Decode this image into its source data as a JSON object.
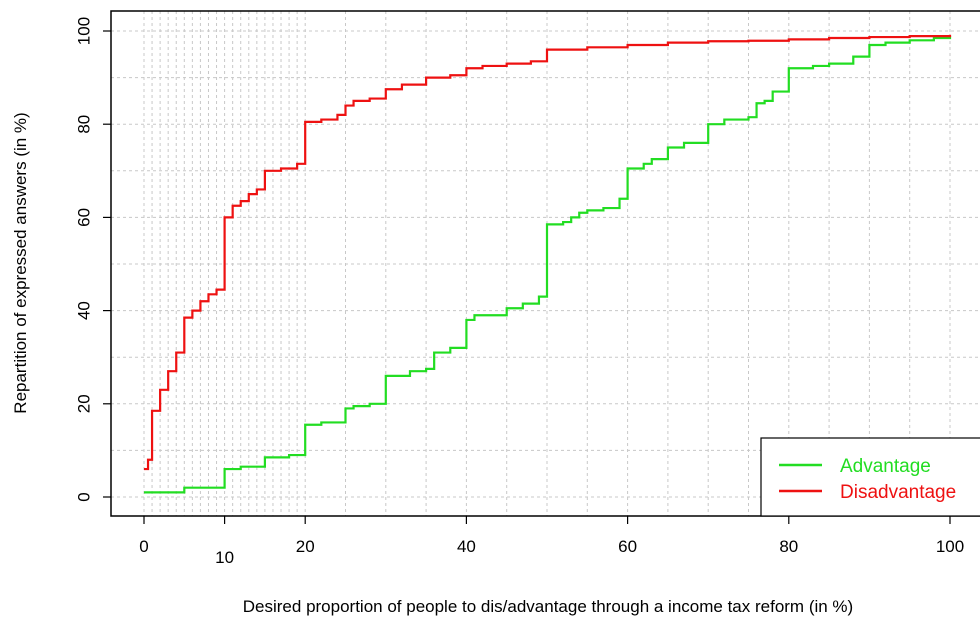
{
  "chart_data": {
    "type": "line",
    "title": "",
    "xlabel": "Desired proportion of people to dis/advantage through a income tax reform (in %)",
    "ylabel": "Repartition of expressed answers (in %)",
    "xlim": [
      0,
      100
    ],
    "ylim": [
      0,
      100
    ],
    "x_ticks": [
      {
        "value": 0,
        "label": "0"
      },
      {
        "value": 10,
        "label": "10"
      },
      {
        "value": 20,
        "label": "20"
      },
      {
        "value": 40,
        "label": "40"
      },
      {
        "value": 60,
        "label": "60"
      },
      {
        "value": 80,
        "label": "80"
      },
      {
        "value": 100,
        "label": "100"
      }
    ],
    "y_ticks": [
      {
        "value": 0,
        "label": "0"
      },
      {
        "value": 20,
        "label": "20"
      },
      {
        "value": 40,
        "label": "40"
      },
      {
        "value": 60,
        "label": "60"
      },
      {
        "value": 80,
        "label": "80"
      },
      {
        "value": 100,
        "label": "100"
      }
    ],
    "x_gridlines": [
      0,
      1,
      2,
      3,
      4,
      5,
      6,
      7,
      8,
      9,
      10,
      11,
      12,
      13,
      14,
      15,
      16,
      17,
      18,
      19,
      20,
      25,
      30,
      35,
      40,
      45,
      50,
      55,
      60,
      65,
      70,
      75,
      80,
      85,
      90,
      95,
      100
    ],
    "y_gridlines": [
      0,
      10,
      20,
      30,
      40,
      50,
      60,
      70,
      80,
      90,
      100
    ],
    "grid": true,
    "legend_position": "bottom-right",
    "step": true,
    "series": [
      {
        "name": "Advantage",
        "color": "#22dd22",
        "x": [
          0,
          5,
          10,
          12,
          15,
          18,
          20,
          22,
          25,
          26,
          28,
          30,
          33,
          35,
          36,
          38,
          40,
          41,
          43,
          45,
          47,
          49,
          50,
          52,
          53,
          54,
          55,
          57,
          59,
          60,
          62,
          63,
          65,
          67,
          70,
          72,
          75,
          76,
          77,
          78,
          80,
          83,
          85,
          88,
          90,
          92,
          95,
          98,
          100
        ],
        "y": [
          1,
          2,
          6,
          6.5,
          8.5,
          9,
          15.5,
          16,
          19,
          19.5,
          20,
          26,
          27,
          27.5,
          31,
          32,
          38,
          39,
          39,
          40.5,
          41.5,
          43,
          58.5,
          59,
          60,
          61,
          61.5,
          62,
          64,
          70.5,
          71.5,
          72.5,
          75,
          76,
          80,
          81,
          81.5,
          84.5,
          85,
          87,
          92,
          92.5,
          93,
          94.5,
          97,
          97.5,
          98,
          98.5,
          99
        ]
      },
      {
        "name": "Disadvantage",
        "color": "#ee1111",
        "x": [
          0,
          0.5,
          1,
          2,
          3,
          4,
          5,
          6,
          7,
          8,
          9,
          10,
          11,
          12,
          13,
          14,
          15,
          17,
          19,
          20,
          22,
          24,
          25,
          26,
          28,
          30,
          32,
          35,
          38,
          40,
          42,
          45,
          48,
          50,
          55,
          60,
          65,
          70,
          75,
          80,
          85,
          90,
          95,
          100
        ],
        "y": [
          6,
          8,
          18.5,
          23,
          27,
          31,
          38.5,
          40,
          42,
          43.5,
          44.5,
          60,
          62.5,
          63.5,
          65,
          66,
          70,
          70.5,
          71.5,
          80.5,
          81,
          82,
          84,
          85,
          85.5,
          87.5,
          88.5,
          90,
          90.5,
          92,
          92.5,
          93,
          93.5,
          96,
          96.5,
          97,
          97.5,
          97.8,
          97.9,
          98.2,
          98.5,
          98.7,
          98.9,
          99.2
        ]
      }
    ]
  }
}
